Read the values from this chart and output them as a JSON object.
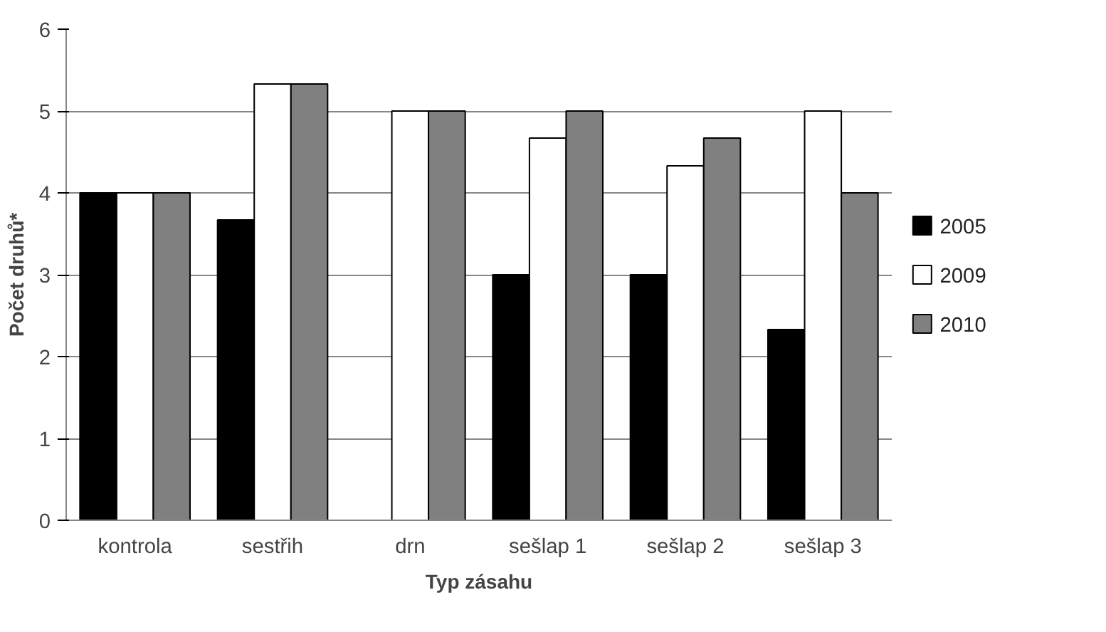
{
  "chart_data": {
    "type": "bar",
    "xlabel": "Typ zásahu",
    "ylabel": "Počet druhů*",
    "categories": [
      "kontrola",
      "sestřih",
      "drn",
      "sešlap 1",
      "sešlap 2",
      "sešlap 3"
    ],
    "series": [
      {
        "name": "2005",
        "color": "#000000",
        "values": [
          4,
          3.67,
          null,
          3,
          3,
          2.33
        ]
      },
      {
        "name": "2009",
        "color": "#ffffff",
        "values": [
          4,
          5.33,
          5,
          4.67,
          4.33,
          5
        ]
      },
      {
        "name": "2010",
        "color": "#808080",
        "values": [
          4,
          5.33,
          5,
          5,
          4.67,
          4
        ]
      }
    ],
    "ylim": [
      0,
      6
    ],
    "yticks": [
      0,
      1,
      2,
      3,
      4,
      5,
      6
    ],
    "grid": "y",
    "legend": "right"
  }
}
